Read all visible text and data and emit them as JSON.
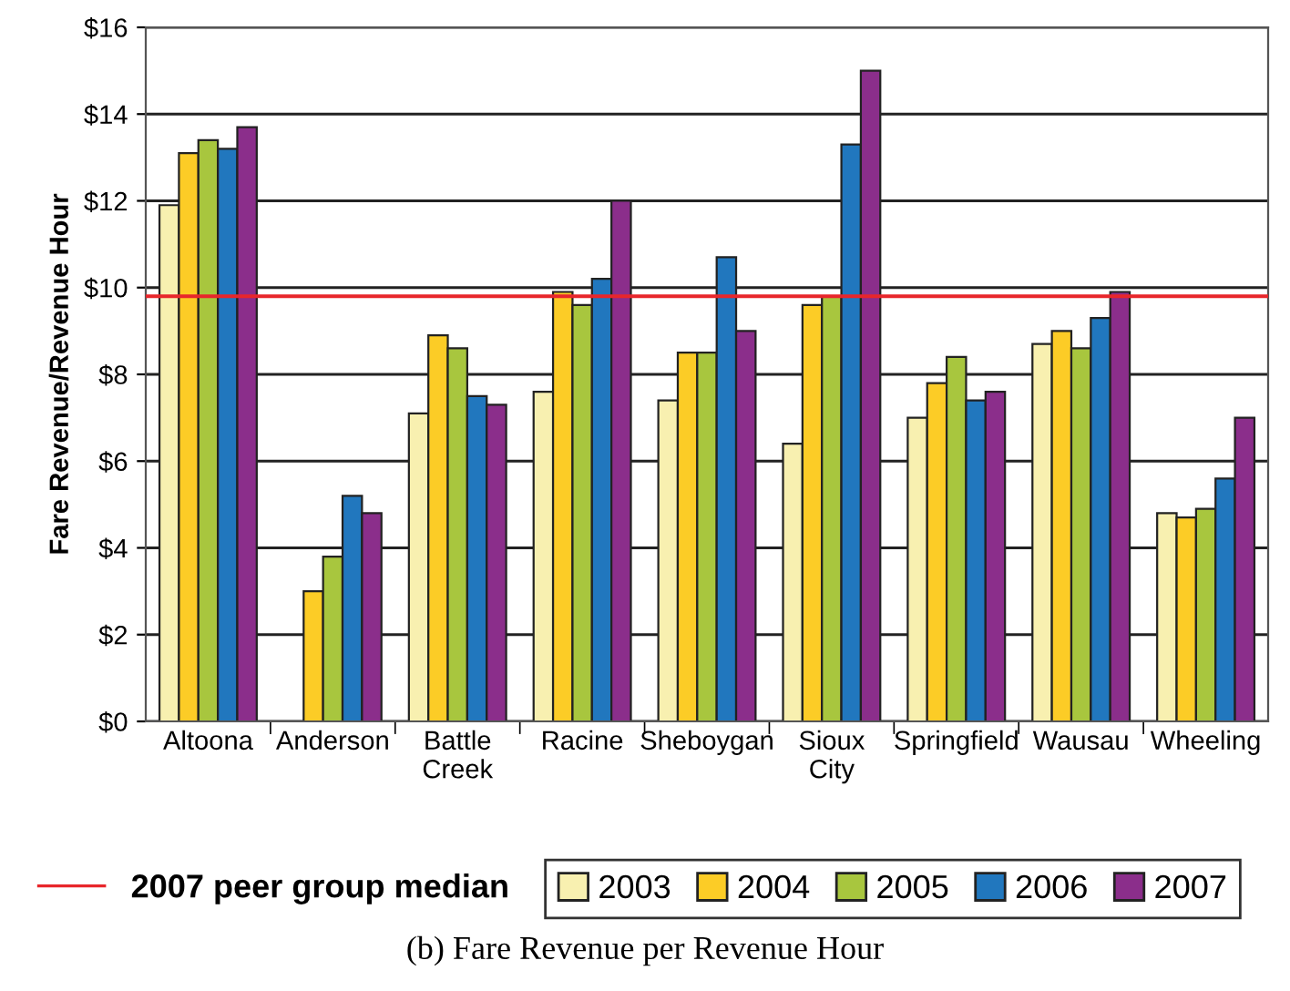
{
  "chart_data": {
    "type": "bar",
    "ylabel": "Fare Revenue/Revenue Hour",
    "categories": [
      "Altoona",
      "Anderson",
      "Battle\nCreek",
      "Racine",
      "Sheboygan",
      "Sioux\nCity",
      "Springfield",
      "Wausau",
      "Wheeling"
    ],
    "series": [
      {
        "name": "2003",
        "color": "#f8f0b0",
        "values": [
          11.9,
          null,
          7.1,
          7.6,
          7.4,
          6.4,
          7.0,
          8.7,
          4.8
        ]
      },
      {
        "name": "2004",
        "color": "#fccc26",
        "values": [
          13.1,
          3.0,
          8.9,
          9.9,
          8.5,
          9.6,
          7.8,
          9.0,
          4.7
        ]
      },
      {
        "name": "2005",
        "color": "#a8c63e",
        "values": [
          13.4,
          3.8,
          8.6,
          9.6,
          8.5,
          9.8,
          8.4,
          8.6,
          4.9
        ]
      },
      {
        "name": "2006",
        "color": "#2177be",
        "values": [
          13.2,
          5.2,
          7.5,
          10.2,
          10.7,
          13.3,
          7.4,
          9.3,
          5.6
        ]
      },
      {
        "name": "2007",
        "color": "#8b2e8b",
        "values": [
          13.7,
          4.8,
          7.3,
          12.0,
          9.0,
          15.0,
          7.6,
          9.9,
          7.0
        ]
      }
    ],
    "ylim": [
      0,
      16
    ],
    "yticks": [
      {
        "value": 0,
        "label": "$0"
      },
      {
        "value": 2,
        "label": "$2"
      },
      {
        "value": 4,
        "label": "$4"
      },
      {
        "value": 6,
        "label": "$6"
      },
      {
        "value": 8,
        "label": "$8"
      },
      {
        "value": 10,
        "label": "$10"
      },
      {
        "value": 12,
        "label": "$12"
      },
      {
        "value": 14,
        "label": "$14"
      },
      {
        "value": 16,
        "label": "$16"
      }
    ],
    "grid": "y",
    "legend": "bottom",
    "ref_lines": [
      {
        "axis": "y",
        "value": 9.8,
        "label": "2007 peer group median",
        "color": "#e8262b"
      }
    ],
    "annotations": [
      "(b) Fare Revenue per Revenue Hour"
    ]
  }
}
